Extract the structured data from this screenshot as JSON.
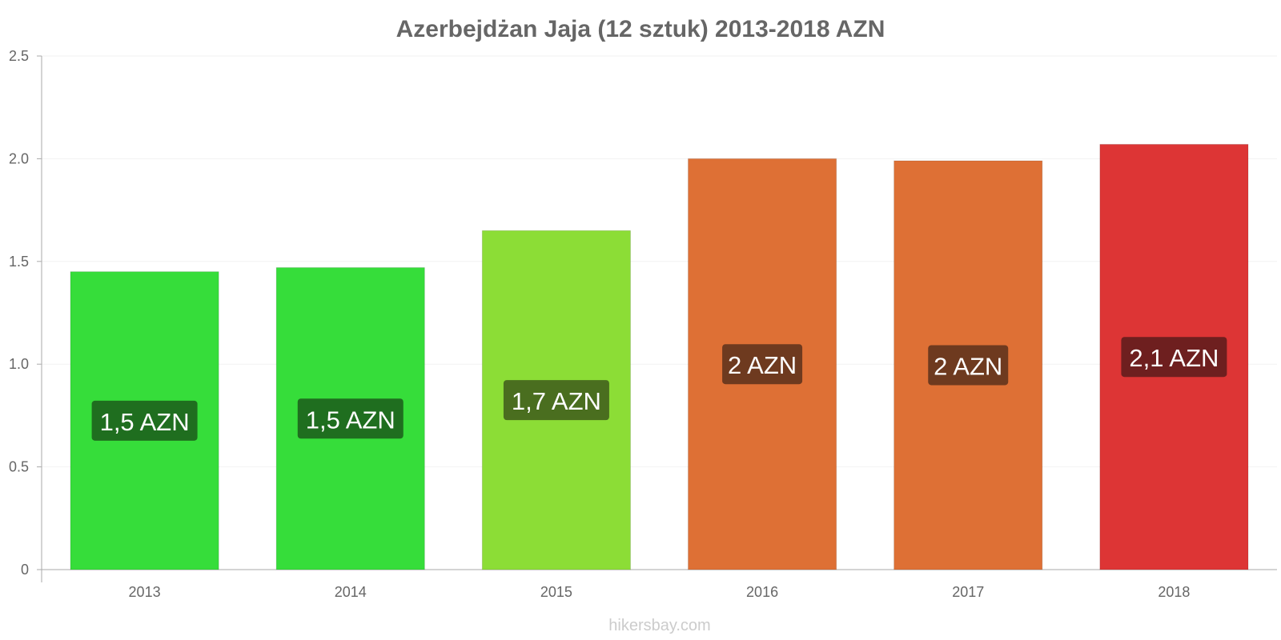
{
  "chart_data": {
    "type": "bar",
    "title": "Azerbejdżan Jaja (12 sztuk) 2013-2018 AZN",
    "categories": [
      "2013",
      "2014",
      "2015",
      "2016",
      "2017",
      "2018"
    ],
    "values": [
      1.45,
      1.47,
      1.65,
      2.0,
      1.99,
      2.07
    ],
    "labels": [
      "1,5 AZN",
      "1,5 AZN",
      "1,7 AZN",
      "2 AZN",
      "2 AZN",
      "2,1 AZN"
    ],
    "colors": [
      "#36dd3a",
      "#36dd3a",
      "#8cdd36",
      "#de7035",
      "#de7035",
      "#dd3535"
    ],
    "label_box_colors": [
      "#1f6e1f",
      "#1f6e1f",
      "#4a6e1f",
      "#6e3a1f",
      "#6e3a1f",
      "#6e1f1f"
    ],
    "yticks": [
      0,
      0.5,
      1.0,
      1.5,
      2.0,
      2.5
    ],
    "ytick_labels": [
      "0",
      "0.5",
      "1.0",
      "1.5",
      "2.0",
      "2.5"
    ],
    "ylim": [
      0,
      2.5
    ],
    "xlabel": "",
    "ylabel": "",
    "grid": true,
    "legend": false
  },
  "source_text": "hikersbay.com"
}
